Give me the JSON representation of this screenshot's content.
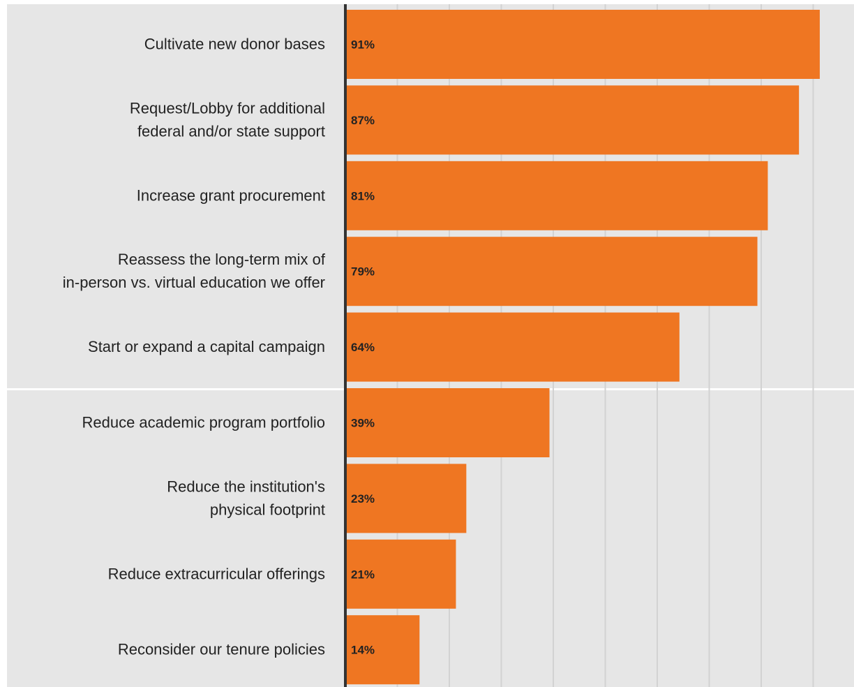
{
  "chart_data": {
    "type": "bar",
    "orientation": "horizontal",
    "categories": [
      [
        "Cultivate new donor bases"
      ],
      [
        "Request/Lobby for additional",
        "federal and/or state support"
      ],
      [
        "Increase grant procurement"
      ],
      [
        "Reassess the long-term mix of",
        "in-person vs. virtual education we offer"
      ],
      [
        "Start or expand a capital campaign"
      ],
      [
        "Reduce academic program portfolio"
      ],
      [
        "Reduce the institution's",
        "physical footprint"
      ],
      [
        "Reduce extracurricular offerings"
      ],
      [
        "Reconsider our tenure policies"
      ]
    ],
    "values": [
      91,
      87,
      81,
      79,
      64,
      39,
      23,
      21,
      14
    ],
    "value_labels": [
      "91%",
      "87%",
      "81%",
      "79%",
      "64%",
      "39%",
      "23%",
      "21%",
      "14%"
    ],
    "xlim": [
      0,
      100
    ],
    "grid": true,
    "bar_color": "#ef7622",
    "panel_color": "#e6e6e6",
    "axis_color": "#333333",
    "gridline_color": "#d2d2d2"
  }
}
